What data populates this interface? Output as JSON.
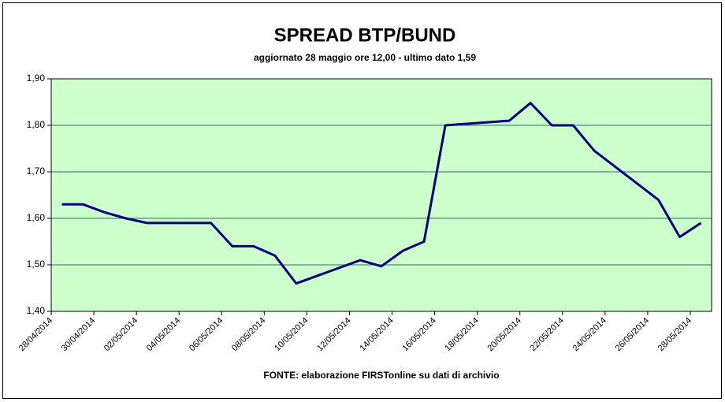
{
  "chart_data": {
    "type": "line",
    "title": "SPREAD BTP/BUND",
    "subtitle": "aggiornato 28 maggio ore 12,00 - ultimo dato 1,59",
    "source": "FONTE: elaborazione FIRSTonline su dati di archivio",
    "x": [
      "28/04/2014",
      "29/04/2014",
      "30/04/2014",
      "01/05/2014",
      "02/05/2014",
      "05/05/2014",
      "06/05/2014",
      "07/05/2014",
      "08/05/2014",
      "09/05/2014",
      "12/05/2014",
      "13/05/2014",
      "14/05/2014",
      "15/05/2014",
      "16/05/2014",
      "19/05/2014",
      "20/05/2014",
      "21/05/2014",
      "22/05/2014",
      "23/05/2014",
      "26/05/2014",
      "27/05/2014",
      "28/05/2014"
    ],
    "series": [
      {
        "name": "SPREAD BTP/BUND",
        "color": "#000080",
        "values": [
          1.63,
          1.63,
          1.613,
          1.6,
          1.59,
          1.59,
          1.54,
          1.54,
          1.52,
          1.46,
          1.51,
          1.497,
          1.53,
          1.55,
          1.8,
          1.81,
          1.848,
          1.8,
          1.8,
          1.745,
          1.64,
          1.56,
          1.59
        ]
      }
    ],
    "xlim": [
      "28/04/2014",
      "28/05/2014"
    ],
    "xticks": [
      "28/04/2014",
      "30/04/2014",
      "02/05/2014",
      "04/05/2014",
      "06/05/2014",
      "08/05/2014",
      "10/05/2014",
      "12/05/2014",
      "14/05/2014",
      "16/05/2014",
      "18/05/2014",
      "20/05/2014",
      "22/05/2014",
      "24/05/2014",
      "26/05/2014",
      "28/05/2014"
    ],
    "ylim": [
      1.4,
      1.9
    ],
    "yticks": [
      {
        "value": 1.4,
        "label": "1,40"
      },
      {
        "value": 1.5,
        "label": "1,50"
      },
      {
        "value": 1.6,
        "label": "1,60"
      },
      {
        "value": 1.7,
        "label": "1,70"
      },
      {
        "value": 1.8,
        "label": "1,80"
      },
      {
        "value": 1.9,
        "label": "1,90"
      }
    ],
    "grid": true,
    "plot_background": "#ccffcc"
  }
}
